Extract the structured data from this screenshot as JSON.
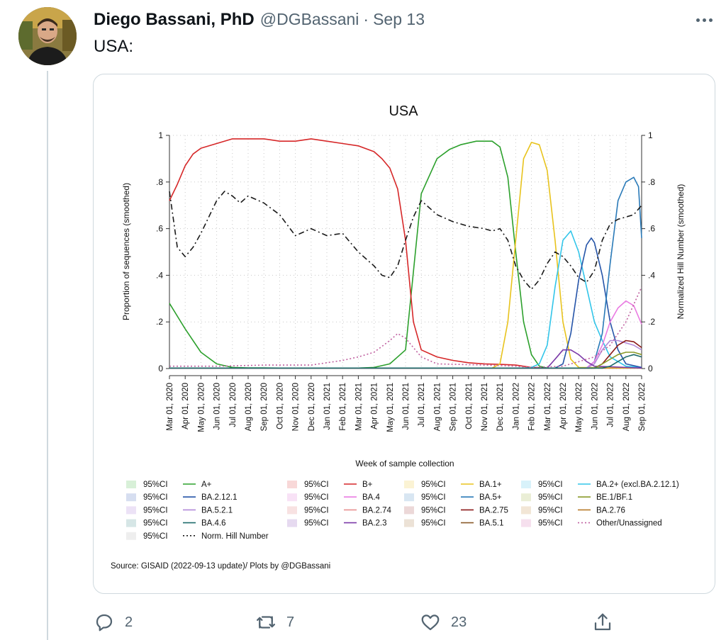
{
  "tweet": {
    "author_name": "Diego Bassani, PhD",
    "handle": "@DGBassani",
    "separator": "·",
    "date": "Sep 13",
    "text": "USA:",
    "avatar_icon": "person-avatar-icon",
    "more_icon": "more-options-icon"
  },
  "actions": {
    "reply": {
      "icon": "reply-icon",
      "count": "2"
    },
    "retweet": {
      "icon": "retweet-icon",
      "count": "7"
    },
    "like": {
      "icon": "like-icon",
      "count": "23"
    },
    "share": {
      "icon": "share-icon",
      "count": ""
    }
  },
  "chart_data": {
    "type": "line",
    "title": "USA",
    "xlabel": "Week of sample collection",
    "ylabel": "Proportion of sequences (smoothed)",
    "y2label": "Normalized Hill Number (smoothed)",
    "ylim": [
      0,
      1
    ],
    "yticks": [
      0,
      0.2,
      0.4,
      0.6,
      0.8,
      1
    ],
    "ytick_labels": [
      "0",
      ".2",
      ".4",
      ".6",
      ".8",
      "1"
    ],
    "xlim": [
      0,
      30
    ],
    "x_tick_labels": [
      "Mar 01, 2020",
      "Apr 01, 2020",
      "May 01, 2020",
      "Jun 01, 2020",
      "Jul 01, 2020",
      "Aug 01, 2020",
      "Sep 01, 2020",
      "Oct 01, 2020",
      "Nov 01, 2020",
      "Dec 01, 2020",
      "Jan 01, 2021",
      "Feb 01, 2021",
      "Mar 01, 2021",
      "Apr 01, 2021",
      "May 01, 2021",
      "Jun 01, 2021",
      "Jul 01, 2021",
      "Aug 01, 2021",
      "Sep 01, 2021",
      "Oct 01, 2021",
      "Nov 01, 2021",
      "Dec 01, 2021",
      "Jan 01, 2022",
      "Feb 01, 2022",
      "Mar 01, 2022",
      "Apr 01, 2022",
      "May 01, 2022",
      "Jun 01, 2022",
      "Jul 01, 2022",
      "Aug 01, 2022",
      "Sep 01, 2022"
    ],
    "grid": true,
    "source": "Source: GISAID (2022-09-13 update)/ Plots by @DGBassani",
    "series": [
      {
        "name": "A+",
        "color": "#2ca02c",
        "dash": "",
        "points": [
          [
            0,
            0.28
          ],
          [
            1,
            0.17
          ],
          [
            2,
            0.07
          ],
          [
            3,
            0.02
          ],
          [
            4,
            0.005
          ],
          [
            5,
            0.003
          ],
          [
            6,
            0.003
          ],
          [
            7,
            0.002
          ],
          [
            8,
            0.002
          ],
          [
            9,
            0.002
          ],
          [
            10,
            0.002
          ],
          [
            11,
            0.002
          ],
          [
            12,
            0.002
          ],
          [
            13,
            0.005
          ],
          [
            14,
            0.02
          ],
          [
            15,
            0.08
          ],
          [
            16,
            0.75
          ],
          [
            17,
            0.9
          ],
          [
            17.8,
            0.94
          ],
          [
            18.5,
            0.96
          ],
          [
            19.5,
            0.975
          ],
          [
            20.5,
            0.975
          ],
          [
            21,
            0.95
          ],
          [
            21.5,
            0.82
          ],
          [
            22,
            0.5
          ],
          [
            22.5,
            0.2
          ],
          [
            23,
            0.06
          ],
          [
            23.5,
            0.01
          ],
          [
            24,
            0.002
          ],
          [
            30,
            0.002
          ]
        ]
      },
      {
        "name": "B+",
        "color": "#d62728",
        "dash": "",
        "points": [
          [
            0,
            0.72
          ],
          [
            0.5,
            0.79
          ],
          [
            1,
            0.87
          ],
          [
            1.5,
            0.92
          ],
          [
            2,
            0.945
          ],
          [
            3,
            0.965
          ],
          [
            4,
            0.985
          ],
          [
            5,
            0.985
          ],
          [
            6,
            0.985
          ],
          [
            7,
            0.975
          ],
          [
            8,
            0.975
          ],
          [
            9,
            0.985
          ],
          [
            10,
            0.975
          ],
          [
            11,
            0.965
          ],
          [
            12,
            0.955
          ],
          [
            13,
            0.93
          ],
          [
            13.5,
            0.9
          ],
          [
            14,
            0.86
          ],
          [
            14.5,
            0.77
          ],
          [
            15,
            0.55
          ],
          [
            15.5,
            0.2
          ],
          [
            16,
            0.08
          ],
          [
            17,
            0.05
          ],
          [
            18,
            0.035
          ],
          [
            19,
            0.025
          ],
          [
            20,
            0.02
          ],
          [
            21,
            0.018
          ],
          [
            22,
            0.015
          ],
          [
            23,
            0.005
          ],
          [
            24,
            0.002
          ],
          [
            30,
            0.002
          ]
        ]
      },
      {
        "name": "BA.1+",
        "color": "#e8c31d",
        "dash": "",
        "points": [
          [
            0,
            0.002
          ],
          [
            20.5,
            0.002
          ],
          [
            21,
            0.02
          ],
          [
            21.5,
            0.2
          ],
          [
            22,
            0.55
          ],
          [
            22.5,
            0.9
          ],
          [
            23,
            0.97
          ],
          [
            23.5,
            0.96
          ],
          [
            24,
            0.85
          ],
          [
            24.5,
            0.55
          ],
          [
            25,
            0.2
          ],
          [
            25.5,
            0.04
          ],
          [
            26,
            0.005
          ],
          [
            30,
            0.002
          ]
        ]
      },
      {
        "name": "BA.2+ (excl.BA.2.12.1)",
        "color": "#32c5e9",
        "dash": "",
        "points": [
          [
            0,
            0.002
          ],
          [
            22.5,
            0.002
          ],
          [
            23,
            0.005
          ],
          [
            23.5,
            0.02
          ],
          [
            24,
            0.1
          ],
          [
            24.5,
            0.35
          ],
          [
            25,
            0.55
          ],
          [
            25.5,
            0.59
          ],
          [
            26,
            0.5
          ],
          [
            26.5,
            0.35
          ],
          [
            27,
            0.2
          ],
          [
            27.5,
            0.12
          ],
          [
            28,
            0.05
          ],
          [
            29,
            0.01
          ],
          [
            30,
            0.005
          ]
        ]
      },
      {
        "name": "BA.2.12.1",
        "color": "#2554a8",
        "dash": "",
        "points": [
          [
            0,
            0.002
          ],
          [
            24.5,
            0.002
          ],
          [
            25,
            0.02
          ],
          [
            25.5,
            0.15
          ],
          [
            26,
            0.38
          ],
          [
            26.5,
            0.53
          ],
          [
            26.8,
            0.56
          ],
          [
            27,
            0.54
          ],
          [
            27.5,
            0.4
          ],
          [
            28,
            0.2
          ],
          [
            28.5,
            0.08
          ],
          [
            29,
            0.02
          ],
          [
            30,
            0.005
          ]
        ]
      },
      {
        "name": "BA.5+",
        "color": "#2a7ab8",
        "dash": "",
        "points": [
          [
            0,
            0.002
          ],
          [
            26.5,
            0.002
          ],
          [
            27,
            0.03
          ],
          [
            27.5,
            0.15
          ],
          [
            28,
            0.45
          ],
          [
            28.5,
            0.72
          ],
          [
            29,
            0.8
          ],
          [
            29.5,
            0.82
          ],
          [
            29.8,
            0.78
          ],
          [
            30,
            0.56
          ]
        ]
      },
      {
        "name": "BA.4",
        "color": "#ea7be2",
        "dash": "",
        "points": [
          [
            0,
            0.002
          ],
          [
            26.5,
            0.002
          ],
          [
            27,
            0.03
          ],
          [
            27.5,
            0.1
          ],
          [
            28,
            0.2
          ],
          [
            28.5,
            0.26
          ],
          [
            29,
            0.29
          ],
          [
            29.5,
            0.27
          ],
          [
            30,
            0.19
          ]
        ]
      },
      {
        "name": "BA.5.2.1",
        "color": "#b28ad9",
        "dash": "",
        "points": [
          [
            0,
            0.002
          ],
          [
            26.5,
            0.002
          ],
          [
            27,
            0.02
          ],
          [
            27.5,
            0.08
          ],
          [
            28,
            0.12
          ],
          [
            28.5,
            0.12
          ],
          [
            29,
            0.11
          ],
          [
            29.5,
            0.1
          ],
          [
            30,
            0.08
          ]
        ]
      },
      {
        "name": "BA.2.75",
        "color": "#8b1a1a",
        "dash": "",
        "points": [
          [
            0,
            0.002
          ],
          [
            27,
            0.002
          ],
          [
            27.5,
            0.02
          ],
          [
            28,
            0.06
          ],
          [
            28.5,
            0.1
          ],
          [
            29,
            0.12
          ],
          [
            29.5,
            0.115
          ],
          [
            30,
            0.09
          ]
        ]
      },
      {
        "name": "BA.2.3",
        "color": "#7b3aa8",
        "dash": "",
        "points": [
          [
            0,
            0.002
          ],
          [
            24,
            0.002
          ],
          [
            24.5,
            0.04
          ],
          [
            25,
            0.08
          ],
          [
            25.5,
            0.08
          ],
          [
            26,
            0.06
          ],
          [
            26.5,
            0.03
          ],
          [
            27,
            0.01
          ],
          [
            30,
            0.002
          ]
        ]
      },
      {
        "name": "BE.1/BF.1",
        "color": "#8a9a2a",
        "dash": "",
        "points": [
          [
            0,
            0.002
          ],
          [
            27,
            0.002
          ],
          [
            27.5,
            0.02
          ],
          [
            28,
            0.04
          ],
          [
            28.5,
            0.06
          ],
          [
            29,
            0.07
          ],
          [
            29.5,
            0.07
          ],
          [
            30,
            0.06
          ]
        ]
      },
      {
        "name": "BA.4.6",
        "color": "#1f6b6b",
        "dash": "",
        "points": [
          [
            0,
            0.002
          ],
          [
            27.5,
            0.002
          ],
          [
            28,
            0.01
          ],
          [
            28.5,
            0.03
          ],
          [
            29,
            0.05
          ],
          [
            29.5,
            0.06
          ],
          [
            30,
            0.05
          ]
        ]
      },
      {
        "name": "Other/Unassigned",
        "color": "#c060a0",
        "dash": "2,3",
        "points": [
          [
            0,
            0.01
          ],
          [
            3,
            0.01
          ],
          [
            6,
            0.015
          ],
          [
            9,
            0.015
          ],
          [
            10,
            0.025
          ],
          [
            11,
            0.035
          ],
          [
            12,
            0.05
          ],
          [
            13,
            0.07
          ],
          [
            14,
            0.12
          ],
          [
            14.5,
            0.15
          ],
          [
            15,
            0.13
          ],
          [
            16,
            0.05
          ],
          [
            17,
            0.02
          ],
          [
            20,
            0.015
          ],
          [
            22,
            0.01
          ],
          [
            23,
            0.005
          ],
          [
            25,
            0.01
          ],
          [
            27,
            0.05
          ],
          [
            28,
            0.1
          ],
          [
            29,
            0.2
          ],
          [
            30,
            0.35
          ]
        ]
      },
      {
        "name": "Norm. Hill Number",
        "color": "#1a1a1a",
        "dash": "8,4,2,4",
        "points": [
          [
            0,
            0.76
          ],
          [
            0.5,
            0.52
          ],
          [
            1,
            0.48
          ],
          [
            1.5,
            0.52
          ],
          [
            2,
            0.58
          ],
          [
            2.5,
            0.65
          ],
          [
            3,
            0.72
          ],
          [
            3.5,
            0.76
          ],
          [
            4,
            0.74
          ],
          [
            4.5,
            0.71
          ],
          [
            5,
            0.74
          ],
          [
            6,
            0.71
          ],
          [
            7,
            0.66
          ],
          [
            8,
            0.57
          ],
          [
            9,
            0.6
          ],
          [
            10,
            0.57
          ],
          [
            11,
            0.58
          ],
          [
            12,
            0.5
          ],
          [
            13,
            0.44
          ],
          [
            13.5,
            0.4
          ],
          [
            14,
            0.39
          ],
          [
            14.5,
            0.44
          ],
          [
            15,
            0.55
          ],
          [
            15.5,
            0.65
          ],
          [
            16,
            0.72
          ],
          [
            17,
            0.66
          ],
          [
            18,
            0.63
          ],
          [
            19,
            0.61
          ],
          [
            20,
            0.6
          ],
          [
            20.5,
            0.59
          ],
          [
            21,
            0.6
          ],
          [
            21.5,
            0.55
          ],
          [
            22,
            0.44
          ],
          [
            22.5,
            0.38
          ],
          [
            23,
            0.34
          ],
          [
            23.5,
            0.38
          ],
          [
            24,
            0.45
          ],
          [
            24.5,
            0.5
          ],
          [
            25,
            0.48
          ],
          [
            25.5,
            0.44
          ],
          [
            26,
            0.39
          ],
          [
            26.5,
            0.37
          ],
          [
            27,
            0.42
          ],
          [
            27.5,
            0.55
          ],
          [
            28,
            0.62
          ],
          [
            28.5,
            0.64
          ],
          [
            29,
            0.65
          ],
          [
            29.5,
            0.66
          ],
          [
            30,
            0.7
          ]
        ]
      },
      {
        "name": "BA.2.74",
        "color": "#e89090",
        "dash": "",
        "points": []
      },
      {
        "name": "BA.2.76",
        "color": "#b87a2a",
        "dash": "",
        "points": []
      },
      {
        "name": "BA.5.1",
        "color": "#8a5a2a",
        "dash": "",
        "points": []
      }
    ],
    "legend": {
      "placement": "bottom",
      "ci_label": "95%CI",
      "rows": [
        [
          {
            "label": "A+",
            "color": "#2ca02c",
            "ci": "#d8f0d8"
          },
          {
            "label": "B+",
            "color": "#d62728",
            "ci": "#f8d8d8"
          },
          {
            "label": "BA.1+",
            "color": "#e8c31d",
            "ci": "#fbf3d4"
          },
          {
            "label": "BA.2+ (excl.BA.2.12.1)",
            "color": "#32c5e9",
            "ci": "#d8f2fa"
          }
        ],
        [
          {
            "label": "BA.2.12.1",
            "color": "#2554a8",
            "ci": "#d6def0"
          },
          {
            "label": "BA.4",
            "color": "#ea7be2",
            "ci": "#f8e2f6"
          },
          {
            "label": "BA.5+",
            "color": "#2a7ab8",
            "ci": "#d8e6f2"
          },
          {
            "label": "BE.1/BF.1",
            "color": "#8a9a2a",
            "ci": "#eaeed6"
          }
        ],
        [
          {
            "label": "BA.5.2.1",
            "color": "#b28ad9",
            "ci": "#ece2f6"
          },
          {
            "label": "BA.2.74",
            "color": "#e89090",
            "ci": "#f8e2e2"
          },
          {
            "label": "BA.2.75",
            "color": "#8b1a1a",
            "ci": "#ecd8d8"
          },
          {
            "label": "BA.2.76",
            "color": "#b87a2a",
            "ci": "#f2e6d6"
          }
        ],
        [
          {
            "label": "BA.4.6",
            "color": "#1f6b6b",
            "ci": "#d6e6e6"
          },
          {
            "label": "BA.2.3",
            "color": "#7b3aa8",
            "ci": "#e6daf0"
          },
          {
            "label": "BA.5.1",
            "color": "#8a5a2a",
            "ci": "#ece2d6"
          },
          {
            "label": "Other/Unassigned",
            "color": "#c060a0",
            "ci": "#f6e0ee",
            "dash": true
          }
        ],
        [
          {
            "label": "Norm. Hill Number",
            "color": "#1a1a1a",
            "ci": "#eeeeee",
            "dash": true
          }
        ]
      ]
    }
  }
}
